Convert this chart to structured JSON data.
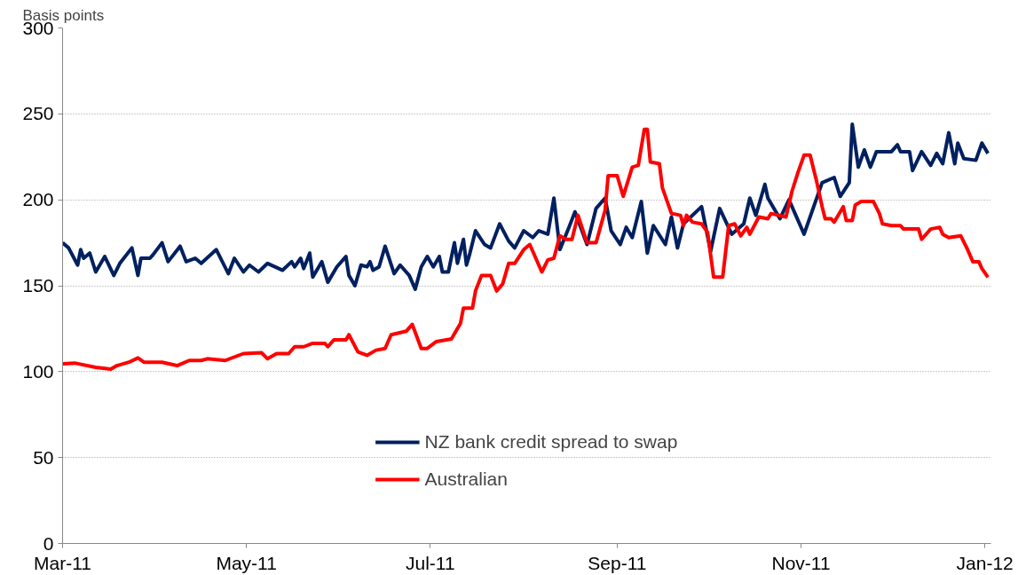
{
  "chart_data": {
    "type": "line",
    "ylabel": "Basis points",
    "xlim": [
      "2011-03-01",
      "2012-01-03"
    ],
    "ylim": [
      0,
      300
    ],
    "yticks": [
      0,
      50,
      100,
      150,
      200,
      250,
      300
    ],
    "xticks": [
      {
        "value": "2011-03-01",
        "label": "Mar-11"
      },
      {
        "value": "2011-05-01",
        "label": "May-11"
      },
      {
        "value": "2011-07-01",
        "label": "Jul-11"
      },
      {
        "value": "2011-09-01",
        "label": "Sep-11"
      },
      {
        "value": "2011-11-01",
        "label": "Nov-11"
      },
      {
        "value": "2012-01-01",
        "label": "Jan-12"
      }
    ],
    "grid": "y",
    "legend": "bottom",
    "line_style": "solid",
    "marker": "none",
    "series": [
      {
        "name": "NZ bank credit spread to swap",
        "color": "#002060",
        "x": [
          "2011-03-01",
          "2011-03-03",
          "2011-03-06",
          "2011-03-07",
          "2011-03-08",
          "2011-03-10",
          "2011-03-12",
          "2011-03-15",
          "2011-03-18",
          "2011-03-20",
          "2011-03-24",
          "2011-03-26",
          "2011-03-27",
          "2011-03-30",
          "2011-03-31",
          "2011-04-03",
          "2011-04-05",
          "2011-04-09",
          "2011-04-11",
          "2011-04-14",
          "2011-04-16",
          "2011-04-21",
          "2011-04-25",
          "2011-04-27",
          "2011-04-30",
          "2011-05-02",
          "2011-05-05",
          "2011-05-08",
          "2011-05-13",
          "2011-05-16",
          "2011-05-17",
          "2011-05-19",
          "2011-05-20",
          "2011-05-22",
          "2011-05-23",
          "2011-05-26",
          "2011-05-28",
          "2011-05-31",
          "2011-06-03",
          "2011-06-04",
          "2011-06-06",
          "2011-06-08",
          "2011-06-10",
          "2011-06-11",
          "2011-06-12",
          "2011-06-14",
          "2011-06-16",
          "2011-06-19",
          "2011-06-21",
          "2011-06-24",
          "2011-06-26",
          "2011-06-28",
          "2011-06-30",
          "2011-07-02",
          "2011-07-04",
          "2011-07-05",
          "2011-07-07",
          "2011-07-09",
          "2011-07-10",
          "2011-07-12",
          "2011-07-13",
          "2011-07-14",
          "2011-07-16",
          "2011-07-19",
          "2011-07-21",
          "2011-07-24",
          "2011-07-27",
          "2011-07-29",
          "2011-08-01",
          "2011-08-04",
          "2011-08-06",
          "2011-08-09",
          "2011-08-11",
          "2011-08-13",
          "2011-08-16",
          "2011-08-18",
          "2011-08-22",
          "2011-08-25",
          "2011-08-28",
          "2011-08-30",
          "2011-09-02",
          "2011-09-04",
          "2011-09-06",
          "2011-09-09",
          "2011-09-11",
          "2011-09-13",
          "2011-09-17",
          "2011-09-19",
          "2011-09-21",
          "2011-09-23",
          "2011-09-29",
          "2011-10-02",
          "2011-10-05",
          "2011-10-09",
          "2011-10-13",
          "2011-10-15",
          "2011-10-17",
          "2011-10-20",
          "2011-10-21",
          "2011-10-25",
          "2011-10-28",
          "2011-10-30",
          "2011-11-02",
          "2011-11-08",
          "2011-11-12",
          "2011-11-14",
          "2011-11-17",
          "2011-11-18",
          "2011-11-20",
          "2011-11-22",
          "2011-11-24",
          "2011-11-26",
          "2011-12-01",
          "2011-12-03",
          "2011-12-04",
          "2011-12-07",
          "2011-12-08",
          "2011-12-11",
          "2011-12-14",
          "2011-12-16",
          "2011-12-18",
          "2011-12-20",
          "2011-12-22",
          "2011-12-23",
          "2011-12-25",
          "2011-12-29",
          "2011-12-31",
          "2012-01-02"
        ],
        "values": [
          175,
          172,
          162,
          171,
          166,
          169,
          158,
          167,
          156,
          163,
          172,
          156,
          166,
          166,
          168,
          175,
          164,
          173,
          164,
          166,
          163,
          171,
          157,
          166,
          158,
          162,
          158,
          163,
          159,
          164,
          161,
          166,
          160,
          169,
          155,
          164,
          152,
          161,
          167,
          156,
          150,
          162,
          161,
          164,
          159,
          161,
          173,
          157,
          162,
          156,
          148,
          161,
          167,
          161,
          167,
          158,
          158,
          175,
          163,
          177,
          162,
          168,
          182,
          174,
          172,
          186,
          176,
          172,
          182,
          178,
          182,
          180,
          201,
          171,
          184,
          193,
          174,
          195,
          201,
          182,
          174,
          184,
          178,
          199,
          169,
          185,
          174,
          190,
          172,
          186,
          196,
          170,
          195,
          180,
          186,
          201,
          191,
          209,
          201,
          189,
          200,
          192,
          180,
          210,
          213,
          202,
          210,
          244,
          219,
          229,
          219,
          228,
          228,
          232,
          228,
          228,
          217,
          228,
          220,
          227,
          221,
          239,
          221,
          233,
          224,
          223,
          233,
          227
        ]
      },
      {
        "name": "Australian",
        "color": "#ff0000",
        "x": [
          "2011-03-01",
          "2011-03-05",
          "2011-03-12",
          "2011-03-17",
          "2011-03-19",
          "2011-03-23",
          "2011-03-26",
          "2011-03-28",
          "2011-04-03",
          "2011-04-08",
          "2011-04-12",
          "2011-04-16",
          "2011-04-18",
          "2011-04-24",
          "2011-04-30",
          "2011-05-06",
          "2011-05-08",
          "2011-05-11",
          "2011-05-15",
          "2011-05-17",
          "2011-05-20",
          "2011-05-23",
          "2011-05-27",
          "2011-05-28",
          "2011-05-30",
          "2011-06-03",
          "2011-06-04",
          "2011-06-07",
          "2011-06-10",
          "2011-06-13",
          "2011-06-16",
          "2011-06-18",
          "2011-06-23",
          "2011-06-25",
          "2011-06-28",
          "2011-06-30",
          "2011-07-03",
          "2011-07-08",
          "2011-07-11",
          "2011-07-12",
          "2011-07-15",
          "2011-07-16",
          "2011-07-18",
          "2011-07-21",
          "2011-07-23",
          "2011-07-25",
          "2011-07-27",
          "2011-07-29",
          "2011-08-01",
          "2011-08-03",
          "2011-08-05",
          "2011-08-07",
          "2011-08-09",
          "2011-08-11",
          "2011-08-13",
          "2011-08-15",
          "2011-08-17",
          "2011-08-19",
          "2011-08-22",
          "2011-08-25",
          "2011-08-28",
          "2011-08-29",
          "2011-09-01",
          "2011-09-03",
          "2011-09-06",
          "2011-09-08",
          "2011-09-10",
          "2011-09-11",
          "2011-09-12",
          "2011-09-15",
          "2011-09-16",
          "2011-09-19",
          "2011-09-22",
          "2011-09-23",
          "2011-09-24",
          "2011-09-26",
          "2011-09-29",
          "2011-10-01",
          "2011-10-03",
          "2011-10-06",
          "2011-10-08",
          "2011-10-10",
          "2011-10-12",
          "2011-10-14",
          "2011-10-15",
          "2011-10-18",
          "2011-10-21",
          "2011-10-22",
          "2011-10-27",
          "2011-10-29",
          "2011-10-31",
          "2011-11-02",
          "2011-11-04",
          "2011-11-06",
          "2011-11-08",
          "2011-11-09",
          "2011-11-11",
          "2011-11-12",
          "2011-11-15",
          "2011-11-16",
          "2011-11-18",
          "2011-11-19",
          "2011-11-21",
          "2011-11-25",
          "2011-11-27",
          "2011-11-28",
          "2011-12-01",
          "2011-12-04",
          "2011-12-05",
          "2011-12-10",
          "2011-12-11",
          "2011-12-14",
          "2011-12-17",
          "2011-12-18",
          "2011-12-20",
          "2011-12-24",
          "2011-12-26",
          "2011-12-28",
          "2011-12-30",
          "2011-12-31",
          "2012-01-02"
        ],
        "values": [
          104.5,
          105,
          102.5,
          101.5,
          103.5,
          105.5,
          108,
          105.5,
          105.5,
          103.5,
          106.5,
          106.5,
          107.5,
          106.5,
          110.5,
          111,
          107.5,
          110.5,
          110.5,
          114.5,
          114.5,
          116.5,
          116.5,
          114.5,
          118.5,
          118.5,
          121.5,
          111.5,
          109.5,
          112.5,
          113.5,
          121.5,
          123.5,
          127.5,
          113.5,
          113.5,
          117.5,
          119,
          128,
          137,
          137,
          147,
          156,
          156,
          147,
          151,
          163,
          163,
          171,
          174,
          166,
          158,
          165,
          166,
          179,
          177,
          177,
          191,
          175,
          175,
          194,
          214,
          214,
          202,
          219,
          220,
          241,
          241,
          222,
          221,
          207,
          192,
          191,
          185,
          191,
          187,
          186,
          181,
          155,
          155,
          185,
          186,
          179,
          184,
          180,
          190,
          189,
          192,
          190,
          205,
          216,
          226,
          226,
          212,
          196,
          189,
          189,
          187,
          196,
          188,
          188,
          197,
          199,
          199,
          192,
          186,
          185,
          185,
          183,
          183,
          177,
          183,
          184,
          180,
          178,
          179,
          172,
          164,
          164,
          160,
          155
        ]
      }
    ]
  }
}
